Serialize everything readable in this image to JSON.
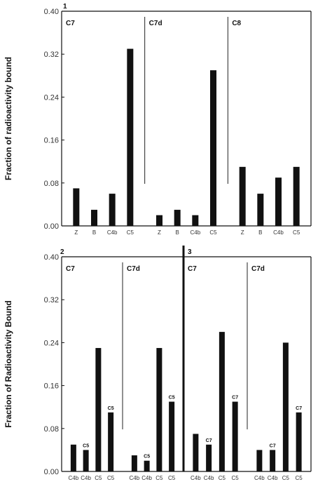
{
  "chart_data": [
    {
      "type": "bar",
      "panel_label": "1",
      "ylabel": "Fraction of radioactivity bound",
      "ylim": [
        0,
        0.4
      ],
      "yticks": [
        "0.00",
        "0.08",
        "0.16",
        "0.24",
        "0.32",
        "0.40"
      ],
      "sections": [
        {
          "label": "C7",
          "categories": [
            "Z",
            "B",
            "C4b",
            "C5"
          ],
          "values": [
            0.07,
            0.03,
            0.06,
            0.33
          ]
        },
        {
          "label": "C7d",
          "categories": [
            "Z",
            "B",
            "C4b",
            "C5"
          ],
          "values": [
            0.02,
            0.03,
            0.02,
            0.29
          ]
        },
        {
          "label": "C8",
          "categories": [
            "Z",
            "B",
            "C4b",
            "C5"
          ],
          "values": [
            0.11,
            0.06,
            0.09,
            0.11
          ]
        }
      ]
    },
    {
      "type": "bar",
      "panel_label": "2",
      "ylabel": "Fraction of Radioactivity Bound",
      "ylim": [
        0,
        0.4
      ],
      "yticks": [
        "0.00",
        "0.08",
        "0.16",
        "0.24",
        "0.32",
        "0.40"
      ],
      "sections": [
        {
          "label": "C7",
          "categories": [
            "C4b",
            "C4b",
            "C5",
            "C5"
          ],
          "values": [
            0.05,
            0.04,
            0.23,
            0.11
          ],
          "data_labels": [
            "",
            "C5",
            "",
            "C5"
          ]
        },
        {
          "label": "C7d",
          "categories": [
            "C4b",
            "C4b",
            "C5",
            "C5"
          ],
          "values": [
            0.03,
            0.02,
            0.23,
            0.13
          ],
          "data_labels": [
            "",
            "C5",
            "",
            "C5"
          ]
        }
      ]
    },
    {
      "type": "bar",
      "panel_label": "3",
      "ylabel": "",
      "ylim": [
        0,
        0.4
      ],
      "sections": [
        {
          "label": "C7",
          "categories": [
            "C4b",
            "C4b",
            "C5",
            "C5"
          ],
          "values": [
            0.07,
            0.05,
            0.26,
            0.13
          ],
          "data_labels": [
            "",
            "C7",
            "",
            "C7"
          ]
        },
        {
          "label": "C7d",
          "categories": [
            "C4b",
            "C4b",
            "C5",
            "C5"
          ],
          "values": [
            0.04,
            0.04,
            0.24,
            0.11
          ],
          "data_labels": [
            "",
            "C7",
            "",
            "C7"
          ]
        }
      ]
    }
  ]
}
